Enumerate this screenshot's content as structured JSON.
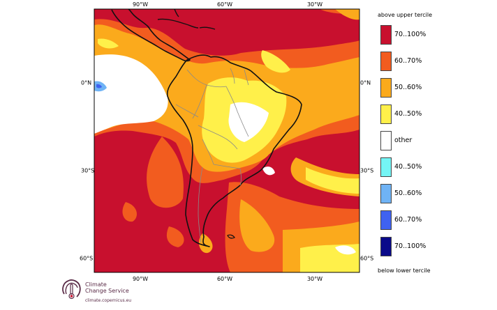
{
  "map": {
    "lon_ticks": [
      "90°W",
      "60°W",
      "30°W"
    ],
    "lat_ticks": [
      "0°N",
      "30°S",
      "60°S"
    ],
    "region": "South America",
    "background_color": "#c8102e"
  },
  "legend": {
    "top_title": "above upper tercile",
    "bottom_title": "below lower tercile",
    "items": [
      {
        "label": "70..100%",
        "color": "#c8102e"
      },
      {
        "label": "60..70%",
        "color": "#f25c1f"
      },
      {
        "label": "50..60%",
        "color": "#fbaa1c"
      },
      {
        "label": "40..50%",
        "color": "#fff04a"
      },
      {
        "label": "other",
        "color": "#ffffff"
      },
      {
        "label": "40..50%",
        "color": "#74f5f5"
      },
      {
        "label": "50..60%",
        "color": "#6fb3f5"
      },
      {
        "label": "60..70%",
        "color": "#3f62f0"
      },
      {
        "label": "70..100%",
        "color": "#0a0a8a"
      }
    ]
  },
  "logo": {
    "line1": "Climate",
    "line2": "Change Service",
    "url": "climate.copernicus.eu"
  }
}
